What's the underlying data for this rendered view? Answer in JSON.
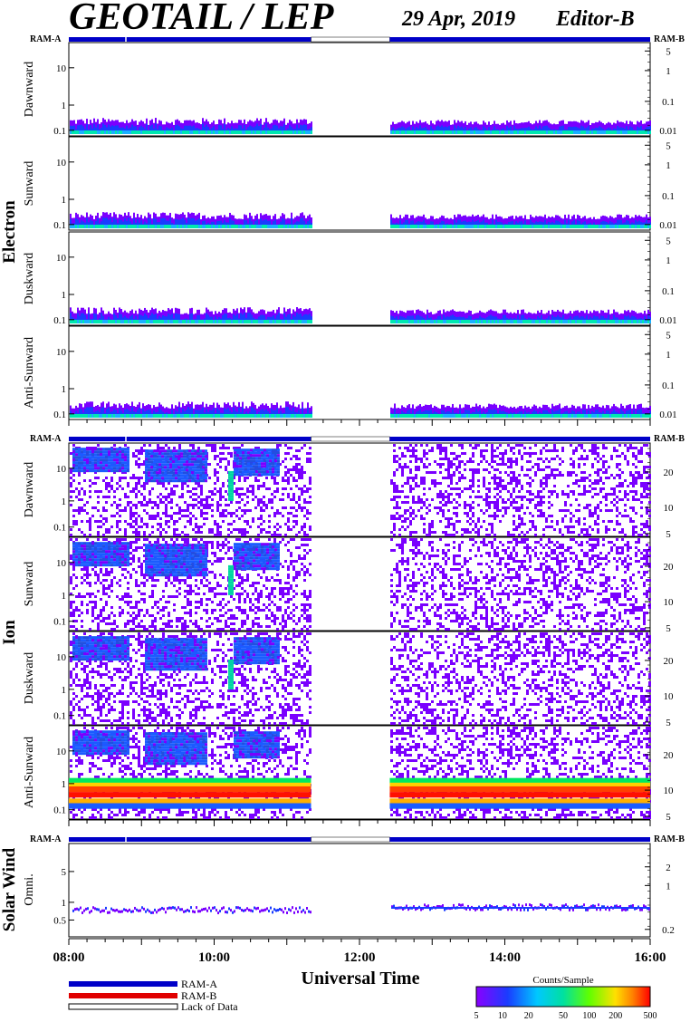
{
  "chart_data": {
    "type": "heatmap",
    "title": "GEOTAIL / LEP",
    "date": "29 Apr, 2019",
    "editor": "Editor-B",
    "xlabel": "Universal Time",
    "x_ticks": [
      "08:00",
      "10:00",
      "12:00",
      "14:00",
      "16:00"
    ],
    "xlim": [
      "08:00",
      "16:00"
    ],
    "data_gap": [
      "11:20",
      "12:25"
    ],
    "groups": [
      {
        "name": "Electron",
        "panels": [
          "Dawnward",
          "Sunward",
          "Duskward",
          "Anti-Sunward"
        ],
        "left_ticks": [
          "10",
          "1",
          "0.1"
        ],
        "right_ticks": [
          "5",
          "1",
          "0.1",
          "0.01"
        ]
      },
      {
        "name": "Ion",
        "panels": [
          "Dawnward",
          "Sunward",
          "Duskward",
          "Anti-Sunward"
        ],
        "left_ticks": [
          "10",
          "1",
          "0.1"
        ],
        "right_ticks": [
          "20",
          "10",
          "5"
        ]
      },
      {
        "name": "Solar Wind",
        "panels": [
          "Omni."
        ],
        "left_ticks": [
          "5",
          "1",
          "0.5"
        ],
        "right_ticks": [
          "2",
          "1",
          "0.2"
        ]
      }
    ],
    "ram_label_left": "RAM-A",
    "ram_label_right": "RAM-B",
    "legend": {
      "ram_a": "RAM-A",
      "ram_b": "RAM-B",
      "lack": "Lack of Data"
    },
    "colorbar": {
      "title": "Counts/Sample",
      "ticks": [
        "5",
        "10",
        "20",
        "50",
        "100",
        "200",
        "500"
      ]
    },
    "colors": {
      "ram_a": "#0000c8",
      "ram_b": "#e00000",
      "purple": "#7a00ff",
      "blue": "#1a3cff",
      "cyan": "#00e0c0",
      "red": "#ff1000"
    }
  }
}
